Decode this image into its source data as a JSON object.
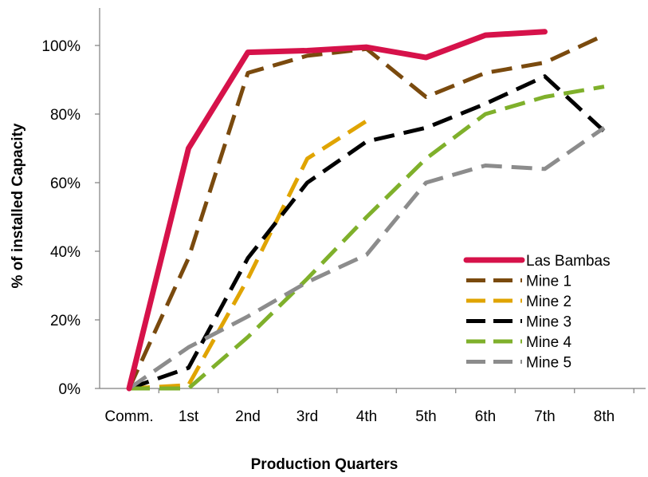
{
  "chart_data": {
    "type": "line",
    "title": "",
    "xlabel": "Production Quarters",
    "ylabel": "% of installed Capacity",
    "categories": [
      "Comm.",
      "1st",
      "2nd",
      "3rd",
      "4th",
      "5th",
      "6th",
      "7th",
      "8th"
    ],
    "yticks": [
      "0%",
      "20%",
      "40%",
      "60%",
      "80%",
      "100%"
    ],
    "ylim": [
      0,
      105
    ],
    "grid": false,
    "legend_position": "bottom-right",
    "series": [
      {
        "name": "Las Bambas",
        "color": "#d6124a",
        "style": "solid",
        "values": [
          0,
          70,
          98,
          98.5,
          99.5,
          96.5,
          103,
          104,
          null
        ]
      },
      {
        "name": "Mine 1",
        "color": "#7a4a0e",
        "style": "dashed",
        "values": [
          0,
          38,
          92,
          97,
          99,
          85,
          92,
          95,
          103
        ]
      },
      {
        "name": "Mine 2",
        "color": "#e0a400",
        "style": "dashed",
        "values": [
          0,
          1,
          32,
          67,
          78,
          null,
          null,
          null,
          null
        ]
      },
      {
        "name": "Mine 3",
        "color": "#000000",
        "style": "dashed",
        "values": [
          0,
          6,
          38,
          60,
          72,
          76,
          83,
          91,
          75
        ]
      },
      {
        "name": "Mine 4",
        "color": "#7fb02b",
        "style": "dashed",
        "values": [
          0,
          0,
          15,
          32,
          50,
          67,
          80,
          85,
          88
        ]
      },
      {
        "name": "Mine 5",
        "color": "#8c8c8c",
        "style": "dashed",
        "values": [
          0,
          12,
          21,
          31,
          39,
          60,
          65,
          64,
          76
        ]
      }
    ]
  }
}
